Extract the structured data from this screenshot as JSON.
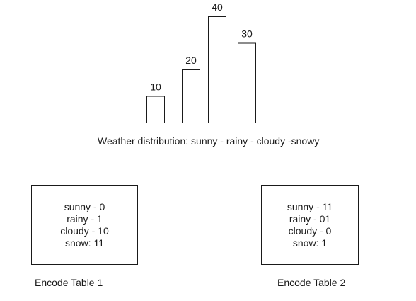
{
  "chart_data": {
    "type": "bar",
    "categories": [
      "sunny",
      "rainy",
      "cloudy",
      "snowy"
    ],
    "values": [
      10,
      20,
      40,
      30
    ],
    "caption": "Weather distribution: sunny - rainy - cloudy -snowy"
  },
  "encode_tables": [
    {
      "label": "Encode Table 1",
      "lines": [
        "sunny - 0",
        "rainy - 1",
        "cloudy - 10",
        "snow: 11"
      ]
    },
    {
      "label": "Encode Table 2",
      "lines": [
        "sunny - 11",
        "rainy - 01",
        "cloudy - 0",
        "snow: 1"
      ]
    }
  ]
}
